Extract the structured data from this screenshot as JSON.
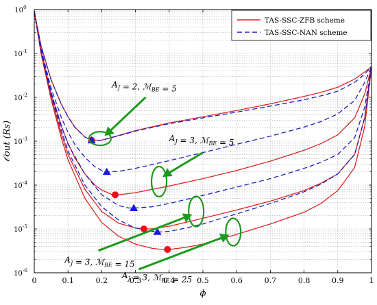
{
  "chart_data": {
    "type": "line",
    "title": "",
    "xlabel": "ϕ",
    "ylabel": "𝒪out (Rs)",
    "xlim": [
      0,
      1
    ],
    "ylim": [
      1e-06,
      1
    ],
    "yscale": "log",
    "grid": true,
    "legend_position": "top-right",
    "x_ticks": [
      "0",
      "0.1",
      "0.2",
      "0.3",
      "0.4",
      "0.5",
      "0.6",
      "0.7",
      "0.8",
      "0.9",
      "1"
    ],
    "y_ticks": [
      "10-6",
      "10-5",
      "10-4",
      "10-3",
      "10-2",
      "10-1",
      "100"
    ],
    "legend": [
      {
        "label": "TAS-SSC-ZFB scheme",
        "color": "#d62728",
        "dash": "solid"
      },
      {
        "label": "TAS-SSC-NAN scheme",
        "color": "#1f1fbf",
        "dash": "dashed"
      }
    ],
    "series": [
      {
        "name": "TAS-SSC-ZFB scheme",
        "group": "A_J=2, M_BE=5",
        "color": "#d62728",
        "dash": "solid",
        "x": [
          0,
          0.02,
          0.05,
          0.08,
          0.1,
          0.12,
          0.15,
          0.17,
          0.2,
          0.25,
          0.3,
          0.4,
          0.5,
          0.6,
          0.7,
          0.8,
          0.85,
          0.9,
          0.95,
          0.98,
          1
        ],
        "y": [
          0.9,
          0.15,
          0.025,
          0.007,
          0.0036,
          0.0021,
          0.00125,
          0.00105,
          0.00106,
          0.00135,
          0.00175,
          0.0026,
          0.0036,
          0.005,
          0.0071,
          0.0105,
          0.013,
          0.017,
          0.026,
          0.038,
          0.05
        ]
      },
      {
        "name": "TAS-SSC-NAN scheme",
        "group": "A_J=2, M_BE=5",
        "color": "#1f1fbf",
        "dash": "dashed",
        "x": [
          0,
          0.02,
          0.05,
          0.08,
          0.1,
          0.12,
          0.15,
          0.17,
          0.2,
          0.25,
          0.3,
          0.4,
          0.5,
          0.6,
          0.7,
          0.8,
          0.85,
          0.9,
          0.95,
          0.98,
          1
        ],
        "y": [
          0.9,
          0.15,
          0.025,
          0.007,
          0.0036,
          0.0021,
          0.00125,
          0.00104,
          0.00105,
          0.00133,
          0.0017,
          0.0025,
          0.0034,
          0.0046,
          0.0063,
          0.0088,
          0.0108,
          0.0138,
          0.022,
          0.034,
          0.05
        ]
      },
      {
        "name": "TAS-SSC-ZFB scheme",
        "group": "A_J=3, M_BE=5",
        "color": "#d62728",
        "dash": "solid",
        "x": [
          0,
          0.02,
          0.05,
          0.08,
          0.1,
          0.12,
          0.15,
          0.18,
          0.2,
          0.23,
          0.25,
          0.3,
          0.4,
          0.5,
          0.6,
          0.7,
          0.8,
          0.85,
          0.9,
          0.95,
          0.98,
          1
        ],
        "y": [
          0.9,
          0.12,
          0.012,
          0.0022,
          0.0009,
          0.00042,
          0.00018,
          0.0001,
          7.7e-05,
          6.1e-05,
          6e-05,
          6.7e-05,
          9.5e-05,
          0.00014,
          0.000215,
          0.00035,
          0.00062,
          0.00088,
          0.0014,
          0.0034,
          0.012,
          0.05
        ]
      },
      {
        "name": "TAS-SSC-NAN scheme",
        "group": "A_J=3, M_BE=5",
        "color": "#1f1fbf",
        "dash": "dashed",
        "x": [
          0,
          0.02,
          0.05,
          0.08,
          0.1,
          0.12,
          0.15,
          0.18,
          0.2,
          0.22,
          0.25,
          0.3,
          0.4,
          0.5,
          0.6,
          0.7,
          0.8,
          0.85,
          0.9,
          0.95,
          0.98,
          1
        ],
        "y": [
          0.9,
          0.13,
          0.016,
          0.0035,
          0.0016,
          0.00085,
          0.00043,
          0.00026,
          0.000215,
          0.0002,
          0.000205,
          0.00024,
          0.00036,
          0.00055,
          0.00085,
          0.0013,
          0.0021,
          0.0028,
          0.0042,
          0.0085,
          0.022,
          0.05
        ]
      },
      {
        "name": "TAS-SSC-ZFB scheme",
        "group": "A_J=3, M_BE=15",
        "color": "#d62728",
        "dash": "solid",
        "x": [
          0,
          0.02,
          0.05,
          0.08,
          0.1,
          0.15,
          0.2,
          0.25,
          0.3,
          0.33,
          0.35,
          0.4,
          0.5,
          0.6,
          0.7,
          0.8,
          0.85,
          0.9,
          0.95,
          0.98,
          1
        ],
        "y": [
          0.9,
          0.11,
          0.01,
          0.0015,
          0.0005,
          8e-05,
          2.5e-05,
          1.35e-05,
          1.05e-05,
          1e-05,
          1.01e-05,
          1.15e-05,
          1.75e-05,
          2.7e-05,
          4.3e-05,
          7.5e-05,
          0.00011,
          0.00018,
          0.0005,
          0.0035,
          0.05
        ]
      },
      {
        "name": "TAS-SSC-NAN scheme",
        "group": "A_J=3, M_BE=15",
        "color": "#1f1fbf",
        "dash": "dashed",
        "x": [
          0,
          0.02,
          0.05,
          0.08,
          0.1,
          0.15,
          0.2,
          0.25,
          0.28,
          0.3,
          0.35,
          0.4,
          0.5,
          0.6,
          0.7,
          0.8,
          0.85,
          0.9,
          0.95,
          0.98,
          1
        ],
        "y": [
          0.9,
          0.12,
          0.013,
          0.0023,
          0.00085,
          0.00018,
          6e-05,
          3.4e-05,
          3e-05,
          3e-05,
          3.2e-05,
          3.8e-05,
          5.8e-05,
          9e-05,
          0.00014,
          0.00024,
          0.00033,
          0.0005,
          0.0012,
          0.006,
          0.05
        ]
      },
      {
        "name": "TAS-SSC-ZFB scheme",
        "group": "A_J=3, M_BE=25",
        "color": "#d62728",
        "dash": "solid",
        "x": [
          0,
          0.02,
          0.05,
          0.08,
          0.1,
          0.15,
          0.2,
          0.25,
          0.3,
          0.35,
          0.38,
          0.4,
          0.45,
          0.5,
          0.6,
          0.7,
          0.8,
          0.85,
          0.9,
          0.95,
          0.98,
          1
        ],
        "y": [
          0.9,
          0.1,
          0.009,
          0.0012,
          0.00038,
          5e-05,
          1.4e-05,
          6.8e-06,
          4.5e-06,
          3.6e-06,
          3.4e-06,
          3.4e-06,
          3.8e-06,
          4.5e-06,
          7.5e-06,
          1.3e-05,
          2.4e-05,
          3.8e-05,
          7.5e-05,
          0.00025,
          0.0022,
          0.05
        ]
      },
      {
        "name": "TAS-SSC-NAN scheme",
        "group": "A_J=3, M_BE=25",
        "color": "#1f1fbf",
        "dash": "dashed",
        "x": [
          0,
          0.02,
          0.05,
          0.08,
          0.1,
          0.15,
          0.2,
          0.25,
          0.3,
          0.35,
          0.37,
          0.4,
          0.45,
          0.5,
          0.6,
          0.7,
          0.8,
          0.85,
          0.9,
          0.95,
          0.98,
          1
        ],
        "y": [
          0.9,
          0.11,
          0.011,
          0.0018,
          0.0006,
          0.0001,
          3.2e-05,
          1.6e-05,
          1.05e-05,
          8.8e-06,
          8.5e-06,
          8.8e-06,
          1.05e-05,
          1.3e-05,
          2.2e-05,
          3.8e-05,
          7e-05,
          0.000105,
          0.00018,
          0.0005,
          0.0035,
          0.05
        ]
      }
    ],
    "optimal_points": [
      {
        "scheme": "TAS-SSC-ZFB scheme",
        "marker": "circle",
        "color": "#e8101a",
        "x": 0.17,
        "y": 0.00105
      },
      {
        "scheme": "TAS-SSC-NAN scheme",
        "marker": "triangle",
        "color": "#1a1ad8",
        "x": 0.17,
        "y": 0.00105
      },
      {
        "scheme": "TAS-SSC-ZFB scheme",
        "marker": "circle",
        "color": "#e8101a",
        "x": 0.24,
        "y": 6e-05
      },
      {
        "scheme": "TAS-SSC-NAN scheme",
        "marker": "triangle",
        "color": "#1a1ad8",
        "x": 0.215,
        "y": 0.0002
      },
      {
        "scheme": "TAS-SSC-ZFB scheme",
        "marker": "circle",
        "color": "#e8101a",
        "x": 0.325,
        "y": 1e-05
      },
      {
        "scheme": "TAS-SSC-NAN scheme",
        "marker": "triangle",
        "color": "#1a1ad8",
        "x": 0.295,
        "y": 3e-05
      },
      {
        "scheme": "TAS-SSC-ZFB scheme",
        "marker": "circle",
        "color": "#e8101a",
        "x": 0.395,
        "y": 3.4e-06
      },
      {
        "scheme": "TAS-SSC-NAN scheme",
        "marker": "triangle",
        "color": "#1a1ad8",
        "x": 0.365,
        "y": 8.6e-06
      }
    ],
    "annotations": [
      {
        "text": "A_J = 2, ℳ_BE = 5",
        "ellipse": {
          "x": 0.195,
          "y": 0.00115
        },
        "arrow_from": {
          "x": 0.33,
          "y": 0.01
        },
        "label_at": {
          "x": 0.23,
          "y": 0.017
        }
      },
      {
        "text": "A_J = 3, ℳ_BE = 5",
        "ellipse": {
          "x": 0.37,
          "y": 0.00012
        },
        "arrow_from": {
          "x": 0.5,
          "y": 0.00055
        },
        "label_at": {
          "x": 0.4,
          "y": 0.001
        }
      },
      {
        "text": "A_J = 3, ℳ_BE = 15",
        "ellipse": {
          "x": 0.48,
          "y": 2.5e-05
        },
        "arrow_from": {
          "x": 0.19,
          "y": 3.2e-06
        },
        "label_at": {
          "x": 0.09,
          "y": 1.7e-06
        }
      },
      {
        "text": "A_J = 3, ℳ_BE = 25",
        "ellipse": {
          "x": 0.59,
          "y": 8.5e-06
        },
        "arrow_from": {
          "x": 0.31,
          "y": 1.2e-06
        },
        "label_at": {
          "x": 0.26,
          "y": 7.5e-07
        }
      }
    ]
  }
}
